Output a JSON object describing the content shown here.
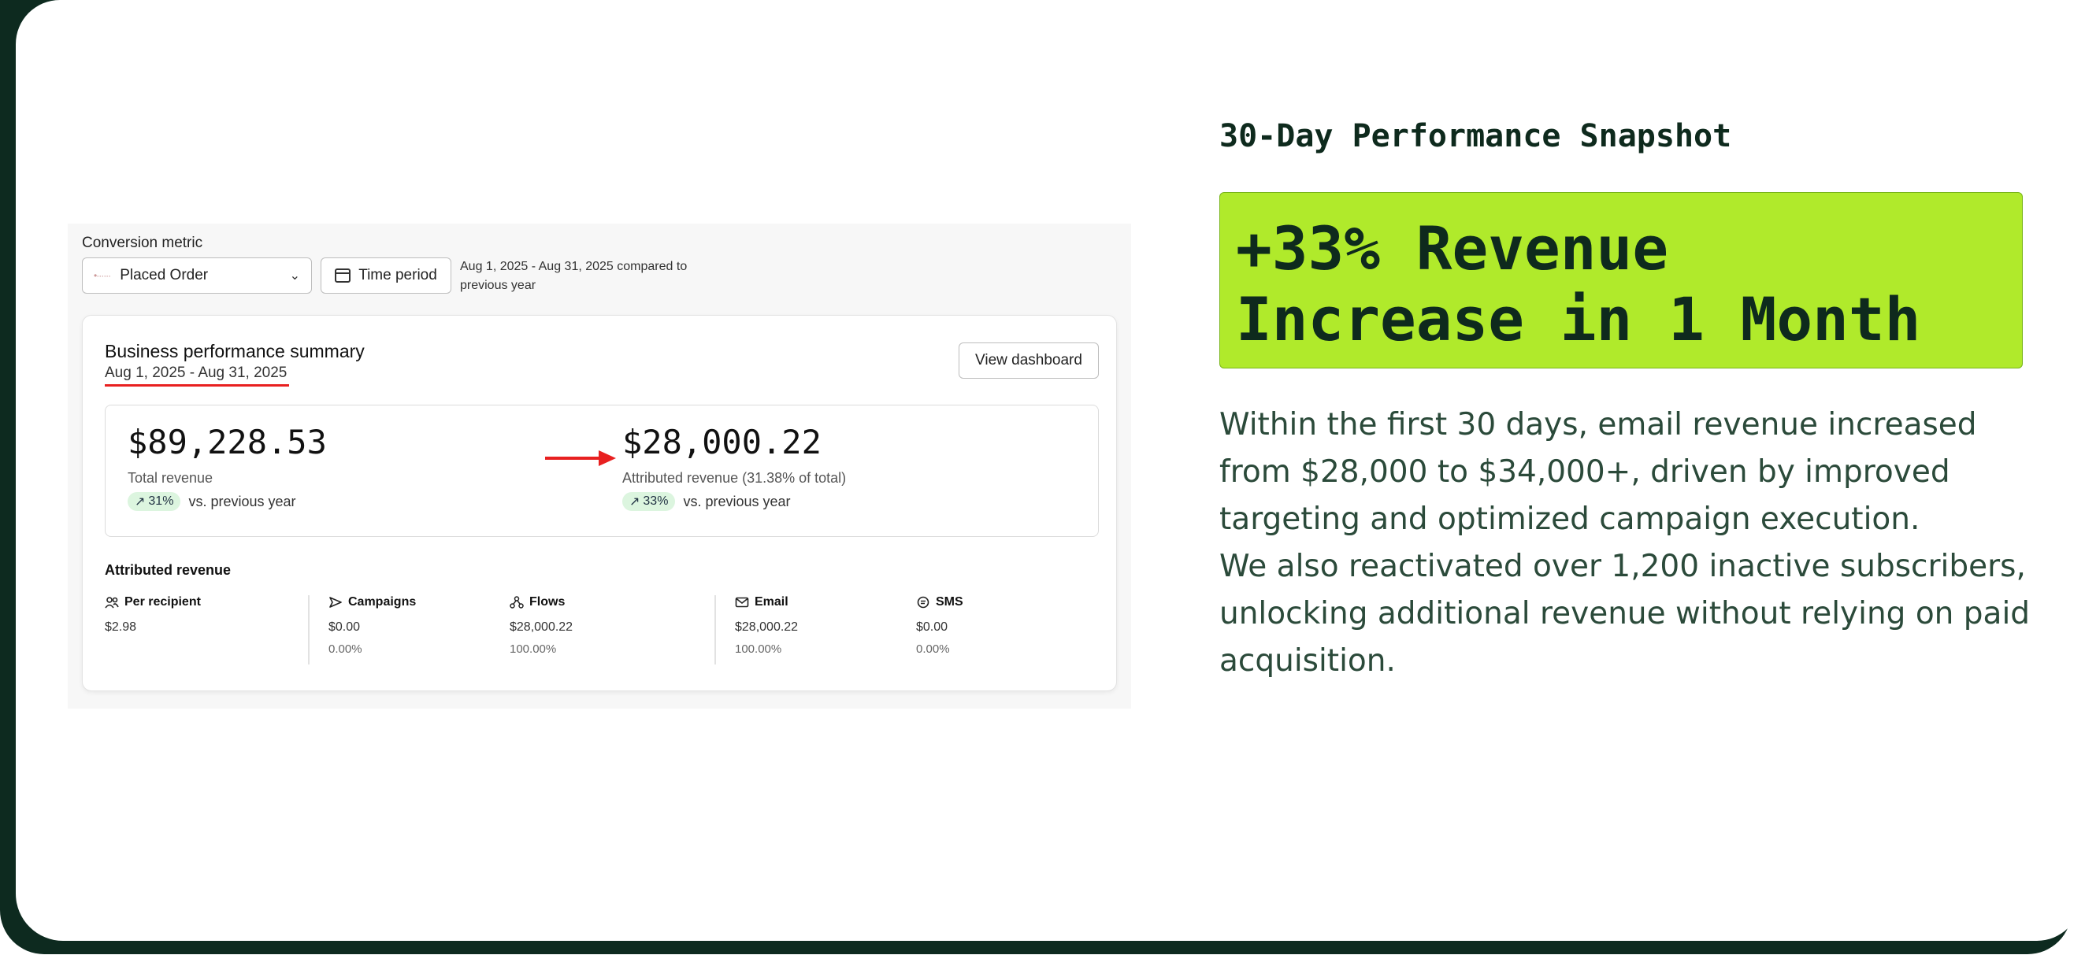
{
  "colors": {
    "accent_green": "#b0ea2b",
    "dark_green": "#0e2a1d",
    "body_text": "#2b4a3a",
    "highlight_red": "#e82020",
    "trend_pill": "#dcf5df"
  },
  "screenshot": {
    "conversion_label": "Conversion metric",
    "conversion_value": "Placed Order",
    "time_period_label": "Time period",
    "period_text": "Aug 1, 2025 - Aug 31, 2025 compared to previous year",
    "summary": {
      "title": "Business performance summary",
      "date_range": "Aug 1, 2025 - Aug 31, 2025",
      "view_dashboard": "View dashboard",
      "total_revenue": {
        "value": "$89,228.53",
        "label": "Total revenue",
        "change": "31%",
        "comparison": "vs. previous year"
      },
      "attributed_revenue": {
        "value": "$28,000.22",
        "label": "Attributed revenue (31.38% of total)",
        "change": "33%",
        "comparison": "vs. previous year"
      },
      "attributed_section_title": "Attributed revenue",
      "metrics": [
        {
          "label": "Per recipient",
          "icon": "users-icon",
          "value": "$2.98",
          "pct": ""
        },
        {
          "label": "Campaigns",
          "icon": "send-icon",
          "value": "$0.00",
          "pct": "0.00%"
        },
        {
          "label": "Flows",
          "icon": "flows-icon",
          "value": "$28,000.22",
          "pct": "100.00%"
        },
        {
          "label": "Email",
          "icon": "mail-icon",
          "value": "$28,000.22",
          "pct": "100.00%"
        },
        {
          "label": "SMS",
          "icon": "sms-icon",
          "value": "$0.00",
          "pct": "0.00%"
        }
      ]
    }
  },
  "snapshot_title": "30-Day Performance Snapshot",
  "headline": "+33% Revenue\nIncrease in 1 Month",
  "body_lines": [
    "Within the first 30 days, email revenue increased",
    "from $28,000 to $34,000+, driven by improved",
    "targeting and optimized campaign execution.",
    "We also reactivated over 1,200 inactive subscribers,",
    "unlocking additional revenue without relying on paid",
    "acquisition."
  ]
}
